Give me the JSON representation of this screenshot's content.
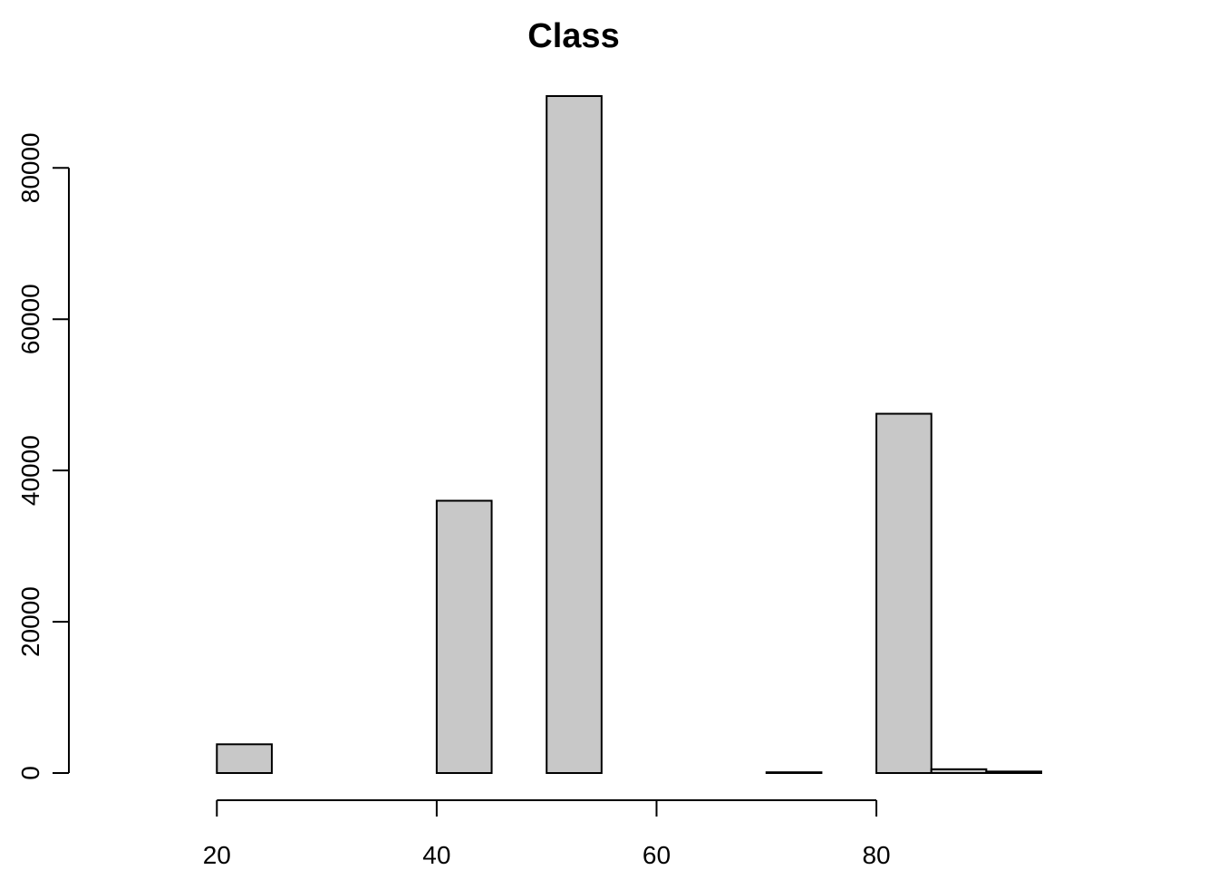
{
  "chart_data": {
    "type": "bar",
    "title": "Class",
    "xlabel": "",
    "ylabel": "",
    "bin_edges": [
      10,
      15,
      20,
      25,
      30,
      35,
      40,
      45,
      50,
      55,
      60,
      65,
      70,
      75,
      80,
      85,
      90,
      95
    ],
    "values": [
      0,
      0,
      3800,
      0,
      0,
      0,
      36000,
      0,
      89500,
      0,
      0,
      0,
      100,
      0,
      47500,
      500,
      200
    ],
    "xlim": [
      10,
      95
    ],
    "ylim": [
      0,
      89500
    ],
    "x_ticks": [
      20,
      40,
      60,
      80
    ],
    "y_ticks": [
      0,
      20000,
      40000,
      60000,
      80000
    ],
    "x_tick_labels": [
      "20",
      "40",
      "60",
      "80"
    ],
    "y_tick_labels": [
      "0",
      "20000",
      "40000",
      "60000",
      "80000"
    ],
    "bar_color": "#c8c8c8",
    "grid": false
  }
}
